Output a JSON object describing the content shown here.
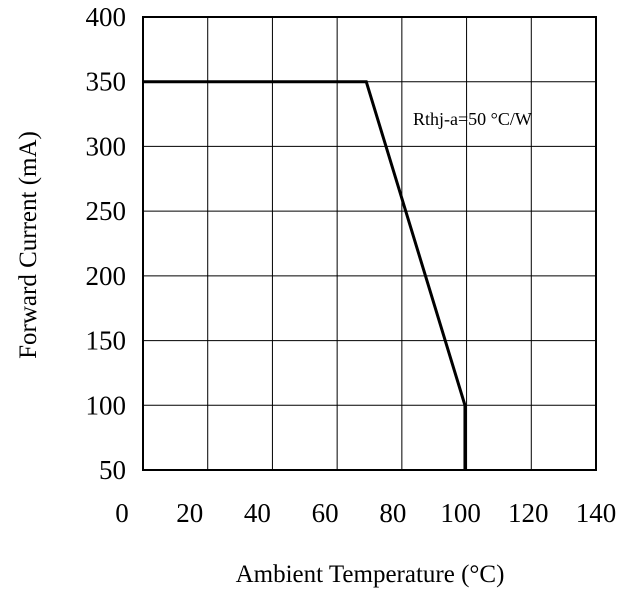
{
  "chart_data": {
    "type": "line",
    "title": "",
    "xlabel": "Ambient Temperature (°C)",
    "ylabel": "Forward Current (mA)",
    "xlim": [
      0,
      140
    ],
    "ylim": [
      50,
      400
    ],
    "xticks": [
      0,
      20,
      40,
      60,
      80,
      100,
      120,
      140
    ],
    "yticks": [
      50,
      100,
      150,
      200,
      250,
      300,
      350,
      400
    ],
    "xtick_labels": [
      "0",
      "20",
      "40",
      "60",
      "80",
      "100",
      "120",
      "140"
    ],
    "ytick_labels": [
      "50",
      "100",
      "150",
      "200",
      "250",
      "300",
      "350",
      "400"
    ],
    "grid": true,
    "legend": "none",
    "annotation": "Rthj-a=50 °C/W",
    "series": [
      {
        "x": [
          0,
          69,
          99.5,
          99.5
        ],
        "y": [
          350,
          350,
          100,
          50
        ]
      }
    ]
  }
}
